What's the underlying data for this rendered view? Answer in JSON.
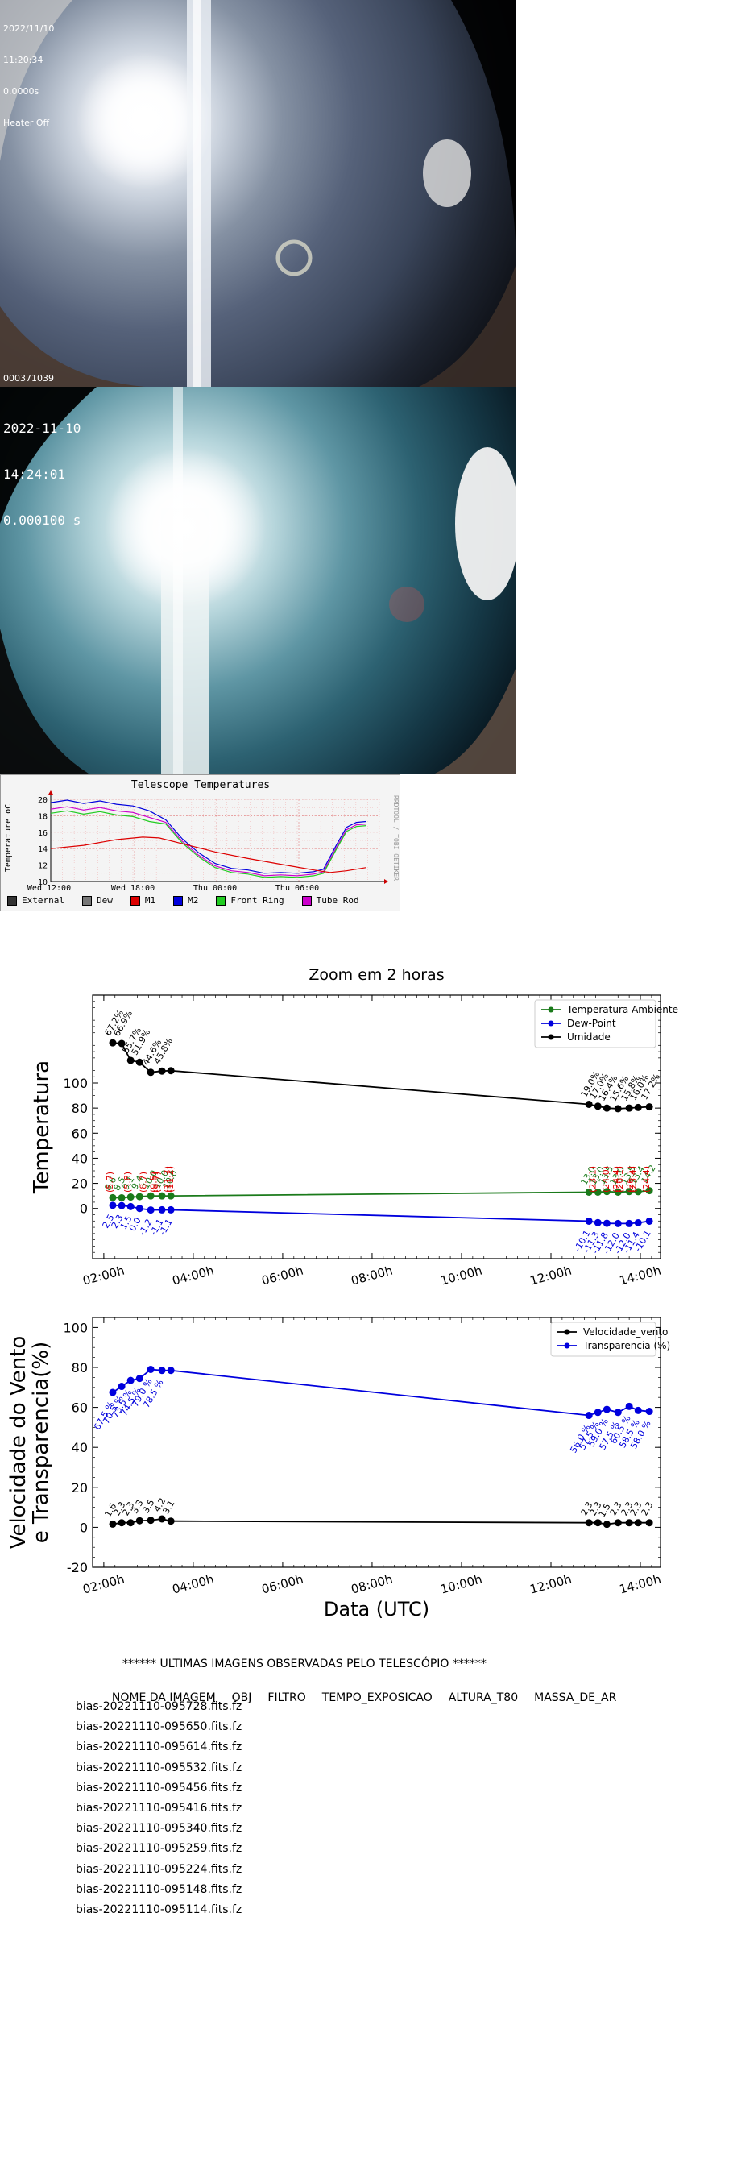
{
  "camera1": {
    "lines": [
      "2022/11/10",
      "11:20:34",
      "0.0000s",
      "Heater Off"
    ],
    "footer": "000371039"
  },
  "camera2": {
    "lines": [
      "2022-11-10",
      "14:24:01",
      "0.000100 s"
    ]
  },
  "telescope_chart": {
    "title": "Telescope Temperatures",
    "ylabel": "Temperature oC",
    "side_text": "RRDTOOL / TOBI OETIKER",
    "x_ticks": [
      "Wed 12:00",
      "Wed 18:00",
      "Thu 00:00",
      "Thu 06:00"
    ],
    "y_ticks": [
      10,
      12,
      14,
      16,
      18,
      20
    ],
    "legend": [
      {
        "label": "External",
        "color": "#333333"
      },
      {
        "label": "Dew",
        "color": "#777777"
      },
      {
        "label": "M1",
        "color": "#dd0000"
      },
      {
        "label": "M2",
        "color": "#0000dd"
      },
      {
        "label": "Front Ring",
        "color": "#22cc22"
      },
      {
        "label": "Tube Rod",
        "color": "#cc00cc"
      }
    ]
  },
  "chart_data": [
    {
      "type": "line",
      "title": "Zoom em 2 horas",
      "ylabel": "Temperatura",
      "xlabel": "",
      "x_ticks": [
        "02:00h",
        "04:00h",
        "06:00h",
        "08:00h",
        "10:00h",
        "12:00h",
        "14:00h"
      ],
      "y_ticks": [
        0,
        20,
        40,
        60,
        80,
        100
      ],
      "xlim": [
        1.75,
        14.45
      ],
      "ylim": [
        -40,
        170
      ],
      "legend_position": "top-right",
      "x": [
        2.2,
        2.4,
        2.6,
        2.8,
        3.05,
        3.3,
        3.5,
        12.85,
        13.05,
        13.25,
        13.5,
        13.75,
        13.95,
        14.2
      ],
      "series": [
        {
          "name": "Temperatura Ambiente",
          "color": "#1a7a1a",
          "values": [
            8.6,
            8.5,
            9.1,
            9.4,
            10.0,
            10.0,
            10.0,
            13.0,
            13.0,
            13.5,
            13.0,
            13.5,
            13.4,
            14.2
          ],
          "labels": [
            "8.6",
            "8.5",
            "9.1",
            "9.4",
            "10.0",
            "10.0",
            "10.0",
            "13.0",
            "13.0",
            "13.5",
            "13.0",
            "13.5",
            "13.4",
            "14.2"
          ]
        },
        {
          "name": "Dew-Point",
          "color": "#0000dd",
          "values": [
            2.5,
            2.3,
            1.5,
            0.0,
            -1.2,
            -1.1,
            -1.1,
            -10.1,
            -11.3,
            -11.8,
            -12.0,
            -12.0,
            -11.4,
            -10.1
          ],
          "labels": [
            "2.5",
            "2.3",
            "1.5",
            "0.0",
            "-1.2",
            "-1.1",
            "-1.1",
            "-10.1",
            "-11.3",
            "-11.8",
            "-12.0",
            "-12.0",
            "-11.4",
            "-10.1"
          ]
        },
        {
          "name": "Umidade",
          "color": "#000000",
          "values": [
            132.0,
            131.5,
            118.0,
            116.5,
            108.5,
            109.5,
            109.8,
            83.0,
            81.5,
            80.0,
            79.5,
            80.0,
            80.5,
            81.0
          ],
          "labels": [
            "67.2%",
            "66.9%",
            "55.7%",
            "51.9%",
            "44.6%",
            "45.8%",
            "",
            "19.0%",
            "17.0%",
            "16.4%",
            "15.6%",
            "15.8%",
            "16.0%",
            "17.2%"
          ]
        }
      ],
      "annotations": {
        "color": "#dd0000",
        "at_x": [
          2.2,
          2.6,
          2.95,
          3.25,
          3.55,
          13.0,
          13.3,
          13.6,
          13.9,
          14.2
        ],
        "labels": [
          "(5.7)",
          "(5.8)",
          "(8.7)",
          "(9.7)",
          "(11.2)",
          "(23.1)",
          "(24.0)",
          "(26.1)",
          "(25.4)",
          "(24.4)"
        ],
        "labels_2": [
          "",
          "",
          "(9.5)",
          "(11.7)",
          "",
          "",
          "(24.4)",
          "(26.1)",
          "",
          ""
        ]
      }
    },
    {
      "type": "line",
      "title": "",
      "ylabel": "Velocidade do Vento\ne Transparencia(%)",
      "xlabel": "Data (UTC)",
      "x_ticks": [
        "02:00h",
        "04:00h",
        "06:00h",
        "08:00h",
        "10:00h",
        "12:00h",
        "14:00h"
      ],
      "y_ticks": [
        -20,
        0,
        20,
        40,
        60,
        80,
        100
      ],
      "xlim": [
        1.75,
        14.45
      ],
      "ylim": [
        -20,
        105
      ],
      "legend_position": "top-right",
      "x": [
        2.2,
        2.4,
        2.6,
        2.8,
        3.05,
        3.3,
        3.5,
        12.85,
        13.05,
        13.25,
        13.5,
        13.75,
        13.95,
        14.2
      ],
      "series": [
        {
          "name": "Velocidade_vento",
          "color": "#000000",
          "values": [
            1.6,
            2.3,
            2.3,
            3.3,
            3.5,
            4.2,
            3.1,
            2.3,
            2.3,
            1.5,
            2.3,
            2.3,
            2.3,
            2.3
          ],
          "labels": [
            "1.6",
            "2.3",
            "2.3",
            "3.3",
            "3.5",
            "4.2",
            "3.1",
            "2.3",
            "2.3",
            "1.5",
            "2.3",
            "2.3",
            "2.3",
            "2.3"
          ]
        },
        {
          "name": "Transparencia (%)",
          "color": "#0000dd",
          "values": [
            67.5,
            70.5,
            73.5,
            74.5,
            79.0,
            78.5,
            78.5,
            56.0,
            57.5,
            59.0,
            57.5,
            60.5,
            58.5,
            58.0
          ],
          "labels": [
            "67.5 %",
            "70.5 %",
            "73.5 %",
            "74.5 %",
            "79.0 %",
            "78.5 %",
            "",
            "56.0 %",
            "57.5 %",
            "59.0 %",
            "57.5 %",
            "60.5 %",
            "58.5 %",
            "58.0 %"
          ]
        }
      ]
    }
  ],
  "table": {
    "title": "****** ULTIMAS IMAGENS OBSERVADAS PELO TELESCÓPIO ******",
    "headers": [
      "NOME DA IMAGEM",
      "OBJ",
      "FILTRO",
      "TEMPO_EXPOSICAO",
      "ALTURA_T80",
      "MASSA_DE_AR"
    ],
    "rows": [
      "bias-20221110-095728.fits.fz",
      "bias-20221110-095650.fits.fz",
      "bias-20221110-095614.fits.fz",
      "bias-20221110-095532.fits.fz",
      "bias-20221110-095456.fits.fz",
      "bias-20221110-095416.fits.fz",
      "bias-20221110-095340.fits.fz",
      "bias-20221110-095259.fits.fz",
      "bias-20221110-095224.fits.fz",
      "bias-20221110-095148.fits.fz",
      "bias-20221110-095114.fits.fz"
    ]
  }
}
